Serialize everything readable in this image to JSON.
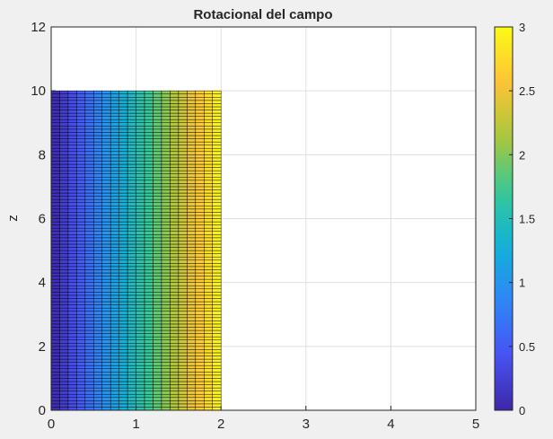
{
  "chart_data": {
    "type": "heatmap",
    "title": "Rotacional del campo",
    "xlabel": "",
    "ylabel": "z",
    "xlim": [
      0,
      5
    ],
    "ylim": [
      0,
      12
    ],
    "xticks": [
      "0",
      "1",
      "2",
      "3",
      "4",
      "5"
    ],
    "yticks": [
      "0",
      "2",
      "4",
      "6",
      "8",
      "10",
      "12"
    ],
    "grid": true,
    "surface": {
      "x_range": [
        0,
        2
      ],
      "z_range": [
        0,
        10
      ],
      "x_step": 0.1,
      "z_step": 0.1,
      "value_formula": "1.5 * x",
      "edge_color": "#000000"
    },
    "colormap": "parula",
    "colorbar": {
      "clim": [
        0,
        3
      ],
      "ticks": [
        "0",
        "0.5",
        "1",
        "1.5",
        "2",
        "2.5",
        "3"
      ],
      "placement": "right"
    }
  }
}
